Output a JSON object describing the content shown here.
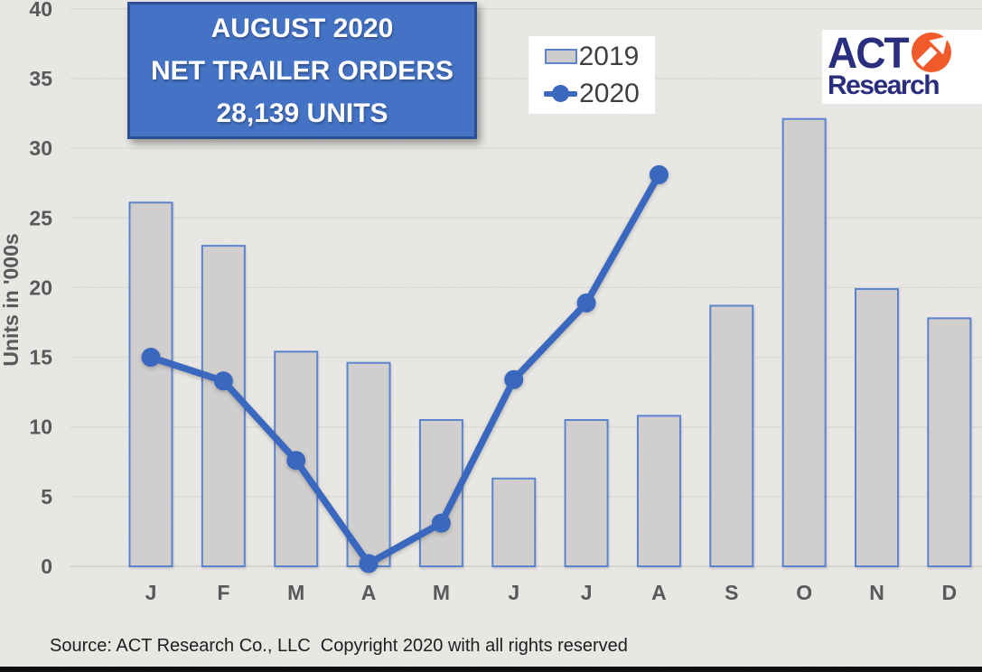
{
  "page": {
    "background": "#E9E8E5",
    "gridline_color": "#DBDAD7",
    "axis_text_color": "#595959",
    "bottom_border_color": "#0E0E0E"
  },
  "title": {
    "line1": "AUGUST 2020",
    "line2": "NET TRAILER ORDERS",
    "line3": "28,139 UNITS",
    "bg_color": "#4472C4",
    "border_color": "#2C4F93",
    "text_color": "#FFFFFF"
  },
  "legend": {
    "items": [
      {
        "label": "2019",
        "swatch": "gray-bar-blue-border"
      },
      {
        "label": "2020",
        "swatch": "blue-line-with-marker"
      }
    ]
  },
  "logo": {
    "word1": "ACT",
    "word2": "Research",
    "navy": "#2A2E7E",
    "orange": "#F15B2B",
    "arrow_icon": "arrow-up-right"
  },
  "source": "Source: ACT Research Co., LLC  Copyright 2020 with all rights reserved",
  "chart_data": {
    "type": "combo",
    "categories": [
      "J",
      "F",
      "M",
      "A",
      "M",
      "J",
      "J",
      "A",
      "S",
      "O",
      "N",
      "D"
    ],
    "series": [
      {
        "name": "2019",
        "type": "bar",
        "values": [
          26.1,
          23.0,
          15.4,
          14.6,
          10.5,
          6.3,
          10.5,
          10.8,
          18.7,
          32.1,
          19.9,
          17.8
        ],
        "fill": "#D0CFCE",
        "border": "#5B84CC"
      },
      {
        "name": "2020",
        "type": "line",
        "values": [
          15.0,
          13.3,
          7.6,
          0.2,
          3.1,
          13.4,
          18.9,
          28.1,
          null,
          null,
          null,
          null
        ],
        "color": "#3A68BE"
      }
    ],
    "ylabel": "Units in '000s",
    "ylim": [
      0,
      40
    ],
    "yticks": [
      0,
      5,
      10,
      15,
      20,
      25,
      30,
      35,
      40
    ],
    "grid": true,
    "legend_position": "top-center"
  }
}
